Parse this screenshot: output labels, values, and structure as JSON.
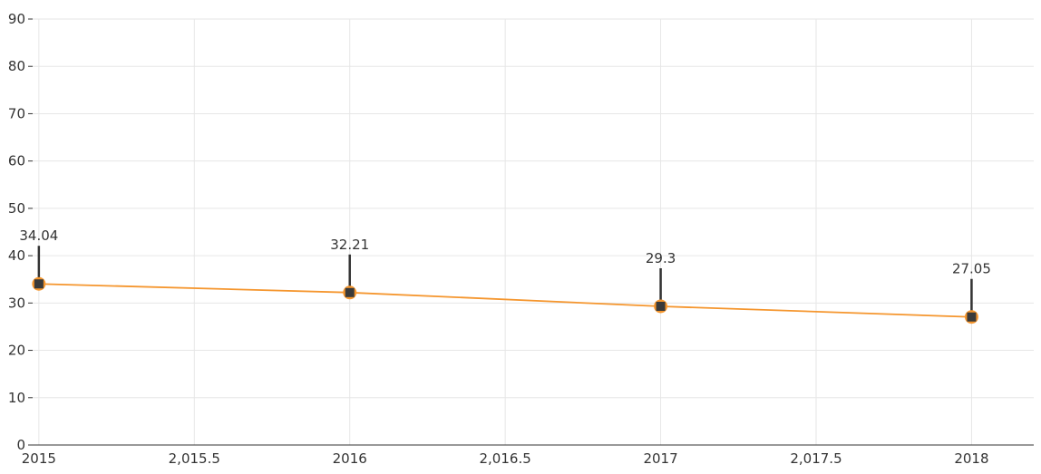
{
  "chart_data": {
    "type": "line",
    "title": "",
    "xlabel": "",
    "ylabel": "",
    "x": [
      2015,
      2016,
      2017,
      2018
    ],
    "series": [
      {
        "values": [
          34.04,
          32.21,
          29.3,
          27.05
        ],
        "data_labels": [
          "34.04",
          "32.21",
          "29.3",
          "27.05"
        ],
        "line_color": "#f5962e",
        "marker_fill": "#3a3a3a",
        "marker_stroke": "#f5962e"
      }
    ],
    "xlim": [
      2014.98,
      2018.2
    ],
    "ylim": [
      0,
      90
    ],
    "x_ticks": [
      2015,
      2015.5,
      2016,
      2016.5,
      2017,
      2017.5,
      2018
    ],
    "x_tick_labels": [
      "2015",
      "2,015.5",
      "2016",
      "2,016.5",
      "2017",
      "2,017.5",
      "2018"
    ],
    "y_ticks": [
      0,
      10,
      20,
      30,
      40,
      50,
      60,
      70,
      80,
      90
    ],
    "y_tick_labels": [
      "0",
      "10",
      "20",
      "30",
      "40",
      "50",
      "60",
      "70",
      "80",
      "90"
    ],
    "grid": true,
    "grid_color": "#e6e6e6",
    "axis_color": "#333333",
    "leader_line_color": "#333333",
    "legend": "none"
  }
}
